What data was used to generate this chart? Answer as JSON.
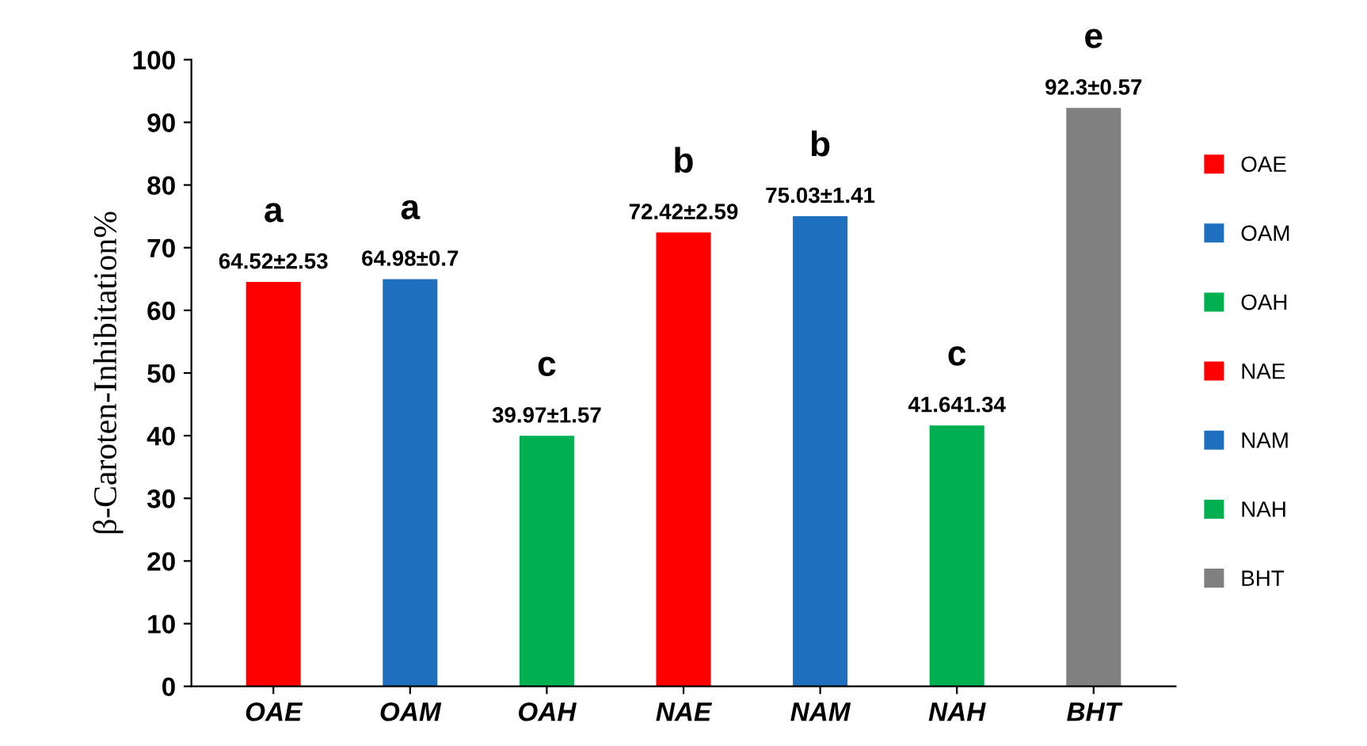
{
  "chart_data": {
    "type": "bar",
    "ylabel": "β-Caroten-Inhibitation%",
    "categories": [
      "OAE",
      "OAM",
      "OAH",
      "NAE",
      "NAM",
      "NAH",
      "BHT"
    ],
    "series": [
      {
        "name": "OAE",
        "color": "#ff0000",
        "values": [
          64.52,
          null,
          null,
          null,
          null,
          null,
          null
        ],
        "value_labels": [
          "64.52±2.53",
          null,
          null,
          null,
          null,
          null,
          null
        ]
      },
      {
        "name": "OAM",
        "color": "#1f6fbf",
        "values": [
          null,
          64.98,
          null,
          null,
          null,
          null,
          null
        ],
        "value_labels": [
          null,
          "64.98±0.7",
          null,
          null,
          null,
          null,
          null
        ]
      },
      {
        "name": "OAH",
        "color": "#00b050",
        "values": [
          null,
          null,
          39.97,
          null,
          null,
          null,
          null
        ],
        "value_labels": [
          null,
          null,
          "39.97±1.57",
          null,
          null,
          null,
          null
        ]
      },
      {
        "name": "NAE",
        "color": "#ff0000",
        "values": [
          null,
          null,
          null,
          72.42,
          null,
          null,
          null
        ],
        "value_labels": [
          null,
          null,
          null,
          "72.42±2.59",
          null,
          null,
          null
        ]
      },
      {
        "name": "NAM",
        "color": "#1f6fbf",
        "values": [
          null,
          null,
          null,
          null,
          75.03,
          null,
          null
        ],
        "value_labels": [
          null,
          null,
          null,
          null,
          "75.03±1.41",
          null,
          null
        ]
      },
      {
        "name": "NAH",
        "color": "#00b050",
        "values": [
          null,
          null,
          null,
          null,
          null,
          41.64,
          null
        ],
        "value_labels": [
          null,
          null,
          null,
          null,
          null,
          "41.641.34",
          null
        ]
      },
      {
        "name": "BHT",
        "color": "#808080",
        "values": [
          null,
          null,
          null,
          null,
          null,
          null,
          92.3
        ],
        "value_labels": [
          null,
          null,
          null,
          null,
          null,
          null,
          "92.3±0.57"
        ]
      }
    ],
    "annotations": [
      "a",
      "a",
      "c",
      "b",
      "b",
      "c",
      "e"
    ],
    "ylim": [
      0,
      100
    ],
    "yticks": [
      0,
      10,
      20,
      30,
      40,
      50,
      60,
      70,
      80,
      90,
      100
    ],
    "grid": false,
    "legend": "right"
  }
}
